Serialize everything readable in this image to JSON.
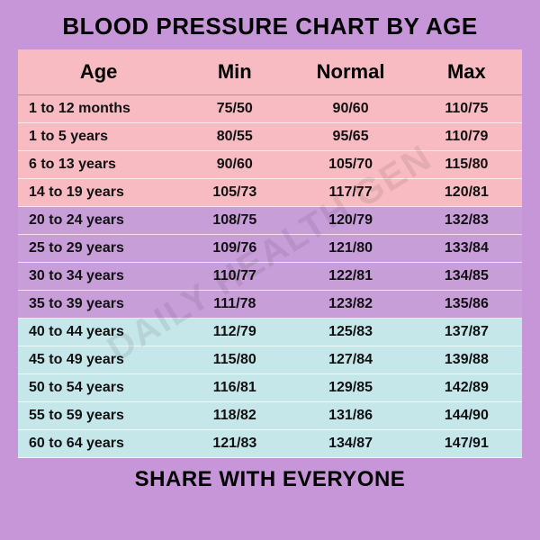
{
  "title": "BLOOD PRESSURE CHART BY AGE",
  "footer": "SHARE WITH EVERYONE",
  "watermark": "DAILY HEALTH GEN",
  "columns": [
    "Age",
    "Min",
    "Normal",
    "Max"
  ],
  "band_colors": {
    "header": "#f7bbc1",
    "band1": "#f7bbc1",
    "band2": "#c79ed8",
    "band3": "#c6e7ea"
  },
  "rows": [
    {
      "age": "1 to 12 months",
      "min": "75/50",
      "normal": "90/60",
      "max": "110/75",
      "band": "band1"
    },
    {
      "age": "1 to 5 years",
      "min": "80/55",
      "normal": "95/65",
      "max": "110/79",
      "band": "band1"
    },
    {
      "age": "6 to 13 years",
      "min": "90/60",
      "normal": "105/70",
      "max": "115/80",
      "band": "band1"
    },
    {
      "age": "14 to 19 years",
      "min": "105/73",
      "normal": "117/77",
      "max": "120/81",
      "band": "band1"
    },
    {
      "age": "20 to 24 years",
      "min": "108/75",
      "normal": "120/79",
      "max": "132/83",
      "band": "band2"
    },
    {
      "age": "25 to 29 years",
      "min": "109/76",
      "normal": "121/80",
      "max": "133/84",
      "band": "band2"
    },
    {
      "age": "30 to 34 years",
      "min": "110/77",
      "normal": "122/81",
      "max": "134/85",
      "band": "band2"
    },
    {
      "age": "35 to 39 years",
      "min": "111/78",
      "normal": "123/82",
      "max": "135/86",
      "band": "band2"
    },
    {
      "age": "40 to 44 years",
      "min": "112/79",
      "normal": "125/83",
      "max": "137/87",
      "band": "band3"
    },
    {
      "age": "45 to 49 years",
      "min": "115/80",
      "normal": "127/84",
      "max": "139/88",
      "band": "band3"
    },
    {
      "age": "50 to 54 years",
      "min": "116/81",
      "normal": "129/85",
      "max": "142/89",
      "band": "band3"
    },
    {
      "age": "55 to 59 years",
      "min": "118/82",
      "normal": "131/86",
      "max": "144/90",
      "band": "band3"
    },
    {
      "age": "60 to 64 years",
      "min": "121/83",
      "normal": "134/87",
      "max": "147/91",
      "band": "band3"
    }
  ]
}
